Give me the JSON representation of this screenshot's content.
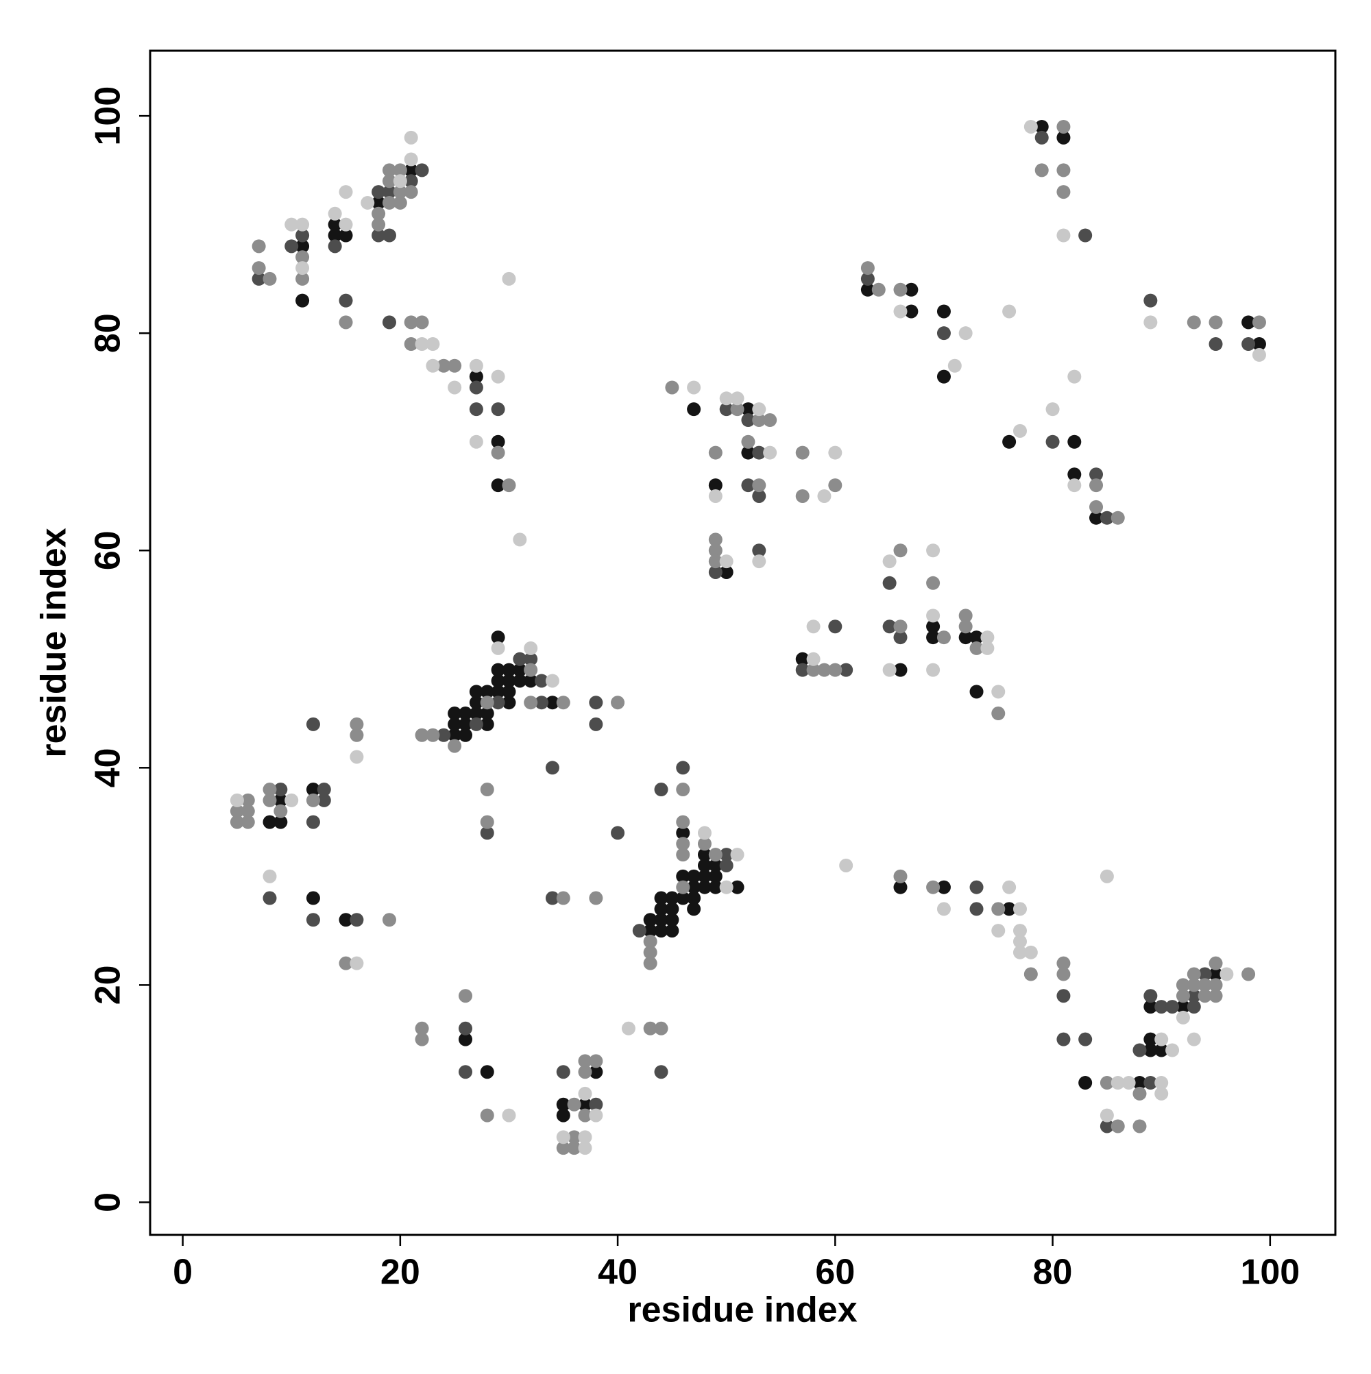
{
  "chart_data": {
    "type": "scatter",
    "xlabel": "residue index",
    "ylabel": "residue index",
    "xlim": [
      -3,
      106
    ],
    "ylim": [
      -3,
      106
    ],
    "xticks": [
      0,
      20,
      40,
      60,
      80,
      100
    ],
    "yticks": [
      0,
      20,
      40,
      60,
      80,
      100
    ],
    "series": [
      {
        "color": "#141414",
        "x": [
          11,
          11,
          14,
          14,
          15,
          18,
          21,
          27,
          29,
          29,
          47,
          52,
          52,
          49,
          50,
          63,
          67,
          67,
          70,
          70,
          79,
          81,
          98,
          99,
          76,
          82,
          82,
          84,
          57,
          66,
          69,
          69,
          72,
          73,
          73,
          25,
          26,
          25,
          26,
          25,
          26,
          27,
          28,
          28,
          27,
          28,
          27,
          28,
          29,
          30,
          29,
          30,
          31,
          32,
          29,
          30,
          31,
          29,
          30,
          34,
          9,
          8,
          9,
          12,
          12,
          15,
          46,
          48,
          46,
          47,
          48,
          49,
          47,
          48,
          49,
          48,
          49,
          45,
          46,
          47,
          44,
          44,
          45,
          47,
          43,
          44,
          45,
          43,
          44,
          45,
          51,
          66,
          70,
          76,
          26,
          28,
          35,
          35,
          37,
          38,
          83,
          88,
          89,
          90,
          89,
          89,
          92,
          95
        ],
        "values": [
          88,
          83,
          90,
          89,
          89,
          92,
          95,
          76,
          70,
          66,
          73,
          73,
          69,
          66,
          58,
          84,
          84,
          82,
          82,
          76,
          99,
          98,
          81,
          79,
          70,
          70,
          67,
          63,
          50,
          49,
          53,
          52,
          52,
          52,
          47,
          43,
          43,
          44,
          44,
          45,
          45,
          45,
          45,
          44,
          46,
          46,
          47,
          47,
          47,
          47,
          48,
          48,
          48,
          48,
          49,
          49,
          49,
          52,
          46,
          46,
          37,
          35,
          35,
          38,
          28,
          26,
          34,
          32,
          30,
          30,
          30,
          30,
          29,
          29,
          29,
          31,
          31,
          28,
          28,
          28,
          28,
          27,
          27,
          27,
          26,
          26,
          26,
          25,
          25,
          25,
          29,
          29,
          29,
          27,
          15,
          12,
          9,
          8,
          9,
          12,
          11,
          11,
          14,
          14,
          15,
          18,
          18,
          21
        ]
      },
      {
        "color": "#4d4d4d",
        "x": [
          7,
          10,
          11,
          14,
          15,
          18,
          19,
          22,
          21,
          18,
          19,
          19,
          27,
          27,
          29,
          50,
          52,
          53,
          52,
          53,
          49,
          53,
          63,
          70,
          79,
          83,
          89,
          95,
          98,
          80,
          84,
          85,
          57,
          60,
          61,
          65,
          65,
          66,
          24,
          27,
          31,
          32,
          29,
          33,
          33,
          38,
          38,
          34,
          28,
          9,
          12,
          13,
          13,
          12,
          8,
          12,
          16,
          40,
          44,
          46,
          50,
          50,
          42,
          34,
          73,
          73,
          26,
          26,
          35,
          38,
          44,
          81,
          81,
          83,
          89,
          85,
          88,
          89,
          90,
          91,
          93,
          93,
          94
        ],
        "values": [
          85,
          88,
          89,
          88,
          83,
          93,
          93,
          95,
          94,
          89,
          89,
          81,
          75,
          73,
          73,
          73,
          72,
          69,
          66,
          65,
          58,
          60,
          85,
          80,
          98,
          89,
          83,
          79,
          79,
          70,
          67,
          63,
          49,
          53,
          49,
          57,
          53,
          52,
          43,
          44,
          50,
          50,
          46,
          46,
          48,
          46,
          44,
          40,
          34,
          38,
          44,
          38,
          37,
          35,
          28,
          26,
          26,
          34,
          38,
          40,
          32,
          31,
          25,
          28,
          29,
          27,
          16,
          12,
          12,
          9,
          12,
          19,
          15,
          15,
          11,
          7,
          14,
          19,
          18,
          18,
          18,
          19,
          21
        ]
      },
      {
        "color": "#8c8c8c",
        "x": [
          7,
          7,
          8,
          11,
          11,
          15,
          19,
          20,
          19,
          20,
          21,
          19,
          20,
          18,
          18,
          21,
          22,
          21,
          24,
          25,
          29,
          30,
          45,
          51,
          53,
          54,
          52,
          49,
          53,
          57,
          57,
          60,
          49,
          49,
          49,
          63,
          64,
          66,
          81,
          79,
          81,
          81,
          93,
          95,
          99,
          84,
          84,
          86,
          58,
          59,
          60,
          66,
          66,
          69,
          70,
          72,
          72,
          73,
          75,
          22,
          23,
          32,
          28,
          25,
          32,
          35,
          40,
          28,
          28,
          6,
          5,
          6,
          5,
          6,
          8,
          8,
          9,
          12,
          16,
          16,
          19,
          15,
          46,
          46,
          46,
          46,
          48,
          49,
          46,
          43,
          43,
          43,
          35,
          38,
          66,
          69,
          75,
          22,
          22,
          26,
          28,
          36,
          37,
          37,
          37,
          38,
          36,
          35,
          36,
          43,
          44,
          78,
          81,
          81,
          85,
          88,
          86,
          88,
          92,
          94,
          95,
          92,
          93,
          94,
          95,
          93,
          95,
          98
        ],
        "values": [
          88,
          86,
          85,
          87,
          85,
          81,
          95,
          95,
          94,
          93,
          93,
          92,
          92,
          91,
          90,
          81,
          81,
          79,
          77,
          77,
          69,
          66,
          75,
          73,
          72,
          72,
          70,
          69,
          66,
          69,
          65,
          66,
          61,
          60,
          59,
          86,
          84,
          84,
          99,
          95,
          95,
          93,
          81,
          81,
          81,
          66,
          64,
          63,
          49,
          49,
          49,
          60,
          53,
          57,
          52,
          54,
          53,
          51,
          45,
          43,
          43,
          49,
          46,
          42,
          46,
          46,
          46,
          38,
          35,
          37,
          36,
          36,
          35,
          35,
          38,
          37,
          36,
          37,
          44,
          43,
          26,
          22,
          38,
          35,
          33,
          32,
          33,
          32,
          29,
          24,
          23,
          22,
          28,
          28,
          30,
          29,
          27,
          16,
          15,
          19,
          8,
          9,
          8,
          12,
          13,
          13,
          6,
          5,
          5,
          16,
          16,
          21,
          22,
          21,
          11,
          10,
          7,
          7,
          19,
          19,
          19,
          20,
          20,
          20,
          20,
          21,
          22,
          21
        ]
      },
      {
        "color": "#c8c8c8",
        "x": [
          10,
          11,
          11,
          14,
          15,
          15,
          17,
          21,
          21,
          20,
          22,
          23,
          23,
          25,
          27,
          27,
          29,
          30,
          31,
          47,
          50,
          51,
          53,
          54,
          49,
          59,
          60,
          50,
          53,
          66,
          72,
          71,
          76,
          78,
          81,
          89,
          99,
          77,
          80,
          82,
          82,
          58,
          58,
          65,
          65,
          69,
          69,
          69,
          74,
          74,
          75,
          32,
          29,
          34,
          5,
          10,
          16,
          8,
          16,
          48,
          51,
          50,
          61,
          76,
          70,
          77,
          75,
          77,
          77,
          77,
          30,
          37,
          38,
          35,
          37,
          37,
          41,
          78,
          86,
          87,
          90,
          90,
          85,
          85,
          91,
          90,
          92,
          96,
          93
        ],
        "values": [
          90,
          90,
          86,
          91,
          90,
          93,
          92,
          96,
          98,
          94,
          79,
          79,
          77,
          75,
          77,
          70,
          76,
          85,
          61,
          75,
          74,
          74,
          73,
          69,
          65,
          65,
          69,
          59,
          59,
          82,
          80,
          77,
          82,
          99,
          89,
          81,
          78,
          71,
          73,
          76,
          66,
          53,
          50,
          59,
          49,
          60,
          54,
          49,
          52,
          51,
          47,
          51,
          51,
          48,
          37,
          37,
          41,
          30,
          22,
          34,
          32,
          29,
          31,
          29,
          27,
          27,
          25,
          25,
          24,
          23,
          8,
          10,
          8,
          6,
          6,
          5,
          16,
          23,
          11,
          11,
          11,
          10,
          8,
          30,
          14,
          15,
          17,
          21,
          15
        ]
      }
    ]
  }
}
